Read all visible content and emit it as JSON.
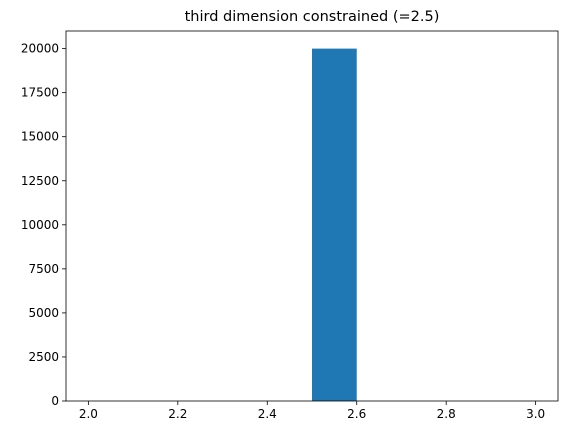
{
  "chart_data": {
    "type": "bar",
    "title": "third dimension constrained (=2.5)",
    "xlabel": "",
    "ylabel": "",
    "xlim": [
      1.95,
      3.05
    ],
    "ylim": [
      0,
      21000
    ],
    "grid": false,
    "xticks": [
      "2.0",
      "2.2",
      "2.4",
      "2.6",
      "2.8",
      "3.0"
    ],
    "yticks": [
      "0",
      "2500",
      "5000",
      "7500",
      "10000",
      "12500",
      "15000",
      "17500",
      "20000"
    ],
    "bars": [
      {
        "x0": 2.0,
        "x1": 2.1,
        "value": 0
      },
      {
        "x0": 2.1,
        "x1": 2.2,
        "value": 0
      },
      {
        "x0": 2.2,
        "x1": 2.3,
        "value": 0
      },
      {
        "x0": 2.3,
        "x1": 2.4,
        "value": 0
      },
      {
        "x0": 2.4,
        "x1": 2.5,
        "value": 0
      },
      {
        "x0": 2.5,
        "x1": 2.6,
        "value": 20000
      },
      {
        "x0": 2.6,
        "x1": 2.7,
        "value": 0
      },
      {
        "x0": 2.7,
        "x1": 2.8,
        "value": 0
      },
      {
        "x0": 2.8,
        "x1": 2.9,
        "value": 0
      },
      {
        "x0": 2.9,
        "x1": 3.0,
        "value": 0
      }
    ],
    "bar_color": "#1f77b4"
  }
}
